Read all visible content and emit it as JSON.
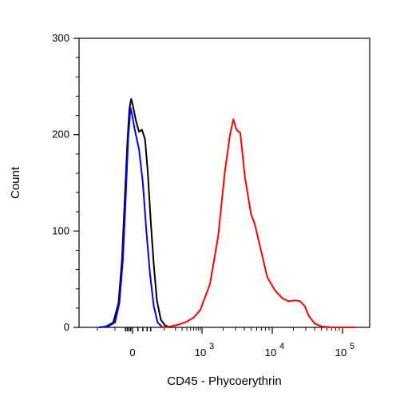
{
  "chart_data": {
    "type": "line",
    "title": "",
    "xlabel": "CD45 - Phycoerythrin",
    "ylabel": "Count",
    "x_scale": "biexponential (linear near 0, logarithmic above ~10^3)",
    "xlim": [
      -200,
      200000
    ],
    "ylim": [
      0,
      300
    ],
    "grid": false,
    "legend": "none",
    "y_ticks": [
      0,
      100,
      200,
      300
    ],
    "y_tick_labels": [
      "0",
      "100",
      "200",
      "300"
    ],
    "x_tick_labels": [
      {
        "value": 0,
        "base": "0",
        "exp": ""
      },
      {
        "value": 1000,
        "base": "10",
        "exp": "3"
      },
      {
        "value": 10000,
        "base": "10",
        "exp": "4"
      },
      {
        "value": 100000,
        "base": "10",
        "exp": "5"
      }
    ],
    "series": [
      {
        "color": "#000000",
        "points": [
          [
            -190,
            0
          ],
          [
            -150,
            1
          ],
          [
            -110,
            5
          ],
          [
            -80,
            25
          ],
          [
            -60,
            70
          ],
          [
            -45,
            130
          ],
          [
            -30,
            190
          ],
          [
            -18,
            226
          ],
          [
            -8,
            237
          ],
          [
            0,
            232
          ],
          [
            6,
            215
          ],
          [
            12,
            203
          ],
          [
            18,
            205
          ],
          [
            25,
            195
          ],
          [
            32,
            160
          ],
          [
            40,
            110
          ],
          [
            50,
            65
          ],
          [
            62,
            28
          ],
          [
            80,
            8
          ],
          [
            105,
            2
          ],
          [
            150,
            0
          ]
        ]
      },
      {
        "color": "#0000ff",
        "points": [
          [
            -190,
            0
          ],
          [
            -140,
            1
          ],
          [
            -100,
            5
          ],
          [
            -75,
            25
          ],
          [
            -55,
            70
          ],
          [
            -40,
            130
          ],
          [
            -25,
            195
          ],
          [
            -12,
            228
          ],
          [
            -4,
            222
          ],
          [
            4,
            205
          ],
          [
            12,
            185
          ],
          [
            20,
            150
          ],
          [
            28,
            100
          ],
          [
            38,
            55
          ],
          [
            50,
            22
          ],
          [
            65,
            5
          ],
          [
            90,
            0
          ]
        ]
      },
      {
        "color": "#ff0000",
        "points": [
          [
            80,
            0
          ],
          [
            150,
            1
          ],
          [
            250,
            3
          ],
          [
            400,
            6
          ],
          [
            600,
            10
          ],
          [
            900,
            18
          ],
          [
            1300,
            45
          ],
          [
            1700,
            95
          ],
          [
            2100,
            160
          ],
          [
            2500,
            200
          ],
          [
            2800,
            216
          ],
          [
            3100,
            205
          ],
          [
            3500,
            202
          ],
          [
            4100,
            155
          ],
          [
            5000,
            117
          ],
          [
            5600,
            108
          ],
          [
            6500,
            88
          ],
          [
            8500,
            52
          ],
          [
            11000,
            38
          ],
          [
            14000,
            30
          ],
          [
            17000,
            27
          ],
          [
            21000,
            28
          ],
          [
            25000,
            27
          ],
          [
            29000,
            22
          ],
          [
            33000,
            12
          ],
          [
            40000,
            4
          ],
          [
            50000,
            1
          ],
          [
            70000,
            0
          ],
          [
            150000,
            0
          ]
        ]
      }
    ]
  }
}
